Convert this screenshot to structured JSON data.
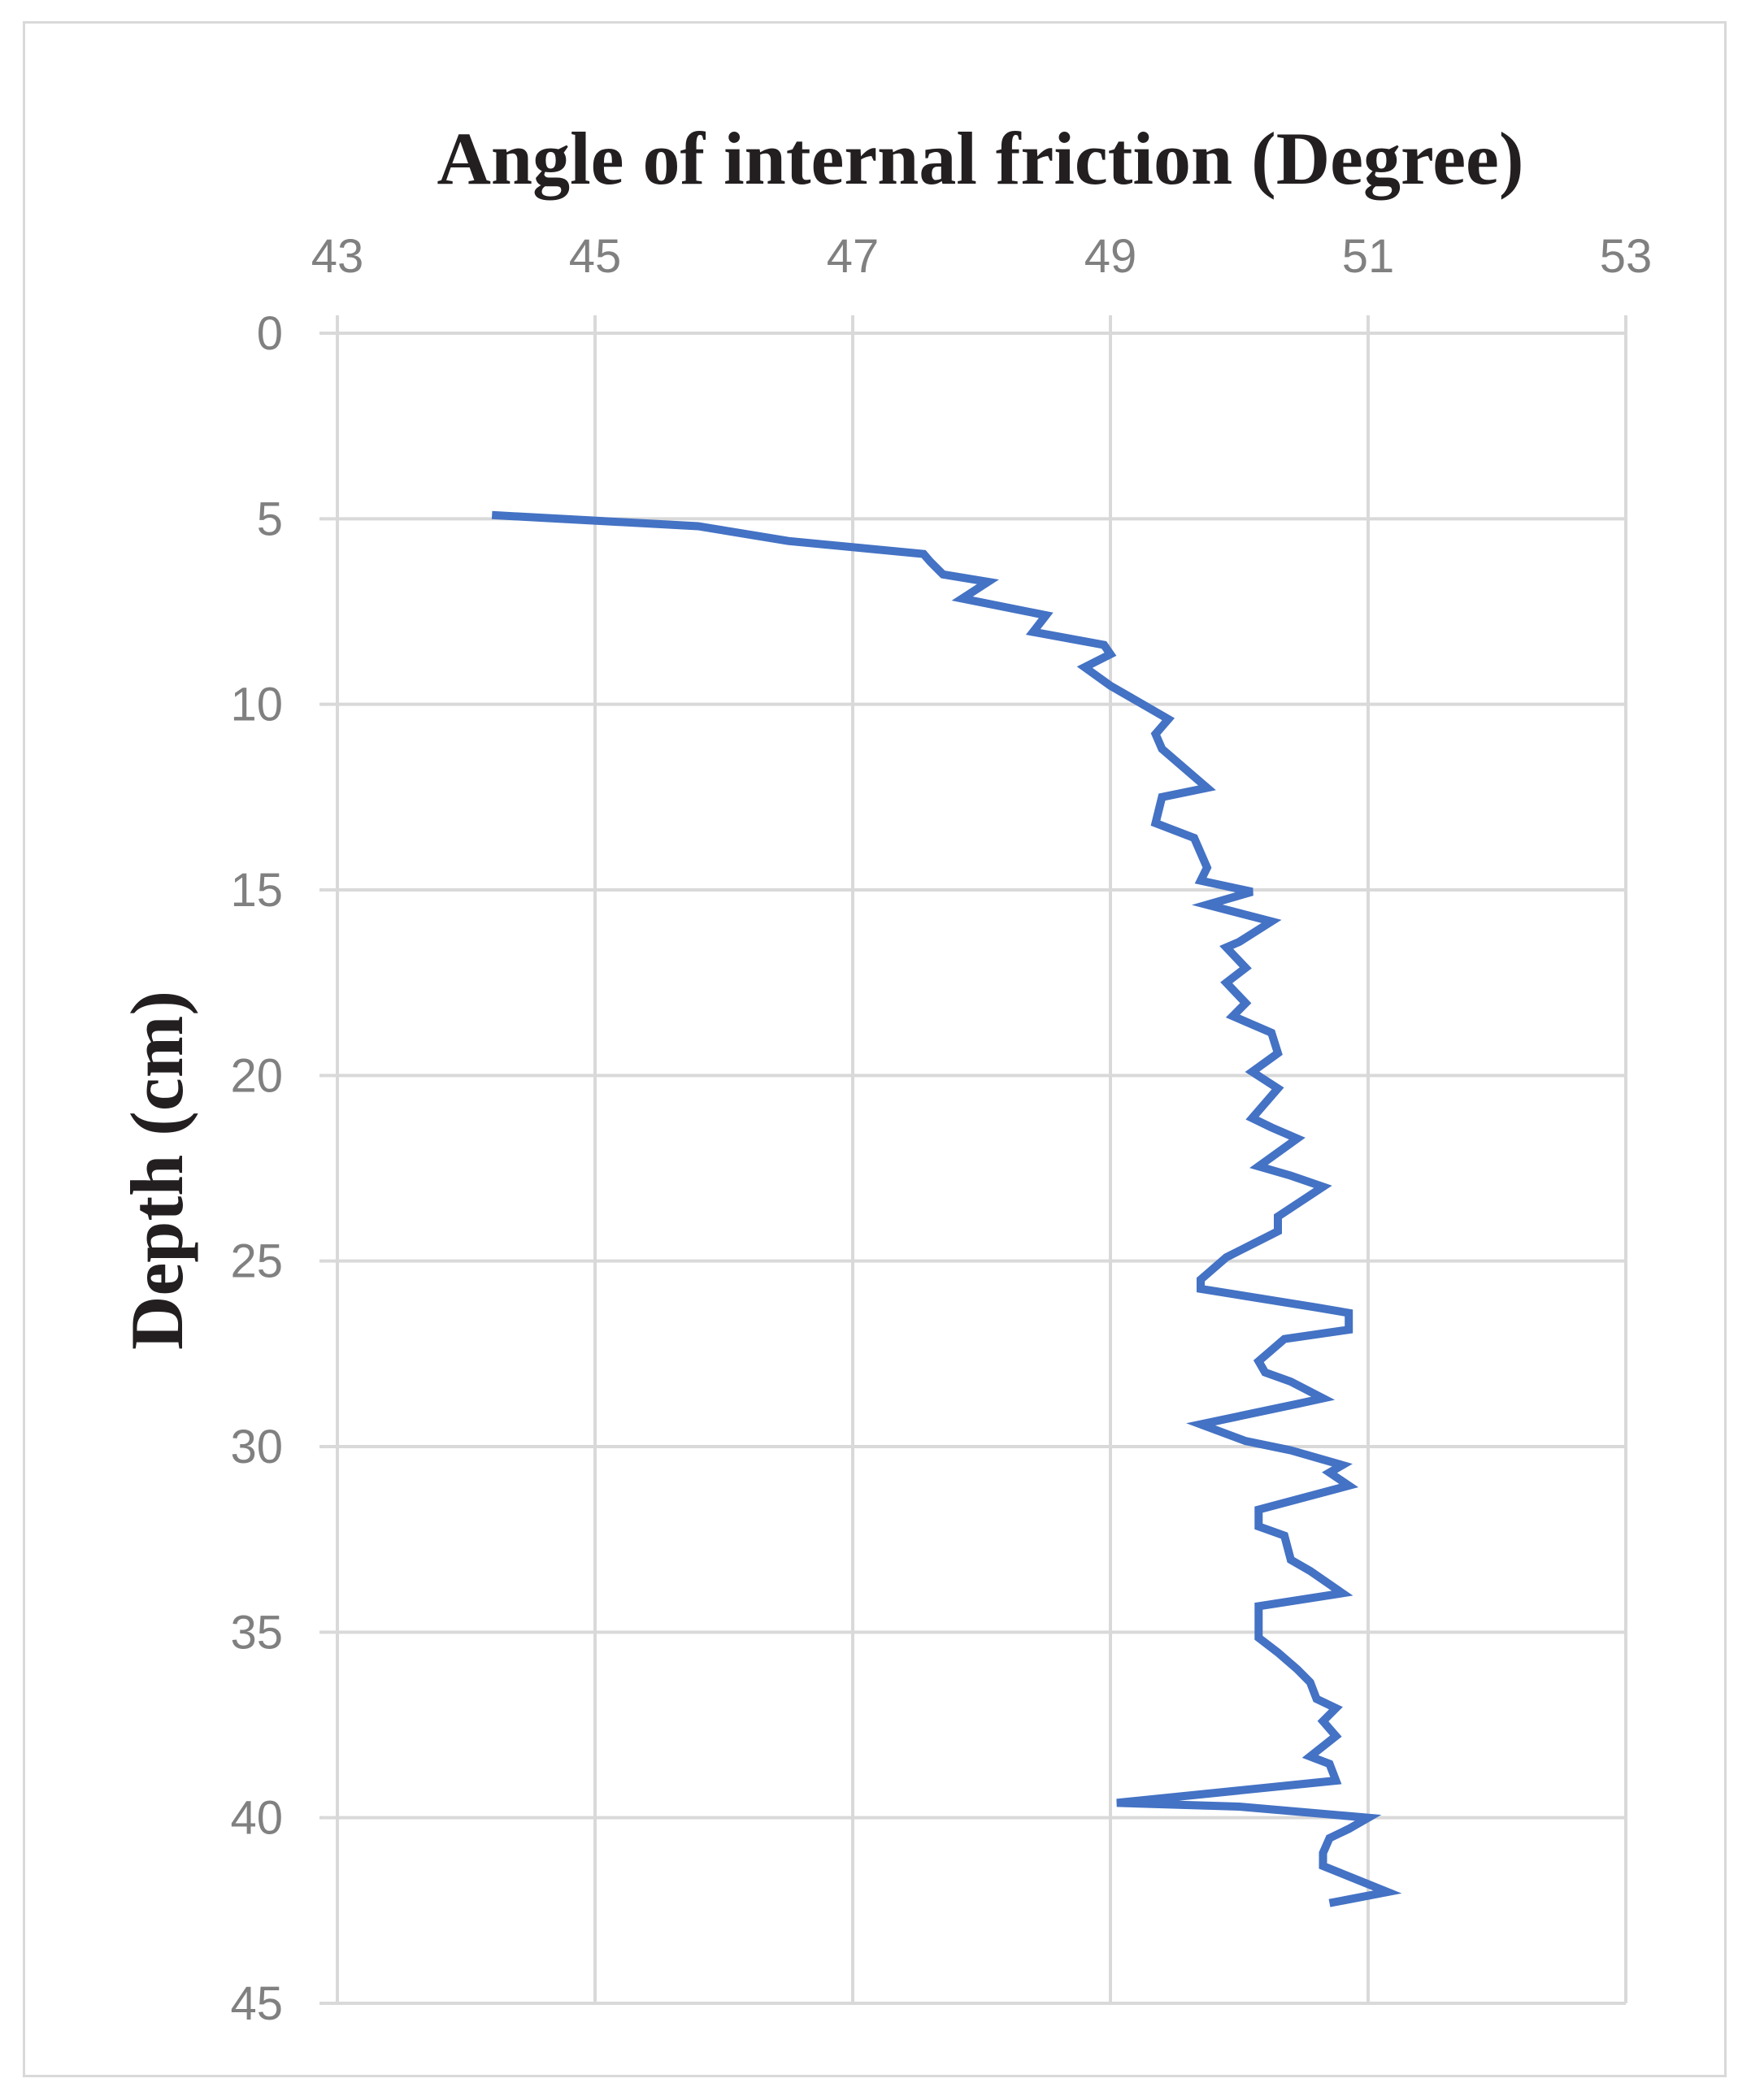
{
  "chart_data": {
    "type": "line",
    "title": "Angle of internal friction (Degree)",
    "xlabel": "Angle of internal friction (Degree)",
    "ylabel": "Depth (cm)",
    "xlim": [
      43,
      53
    ],
    "ylim": [
      0,
      45
    ],
    "x_axis_position": "top",
    "y_axis_inverted": true,
    "x_ticks": [
      43,
      45,
      47,
      49,
      51,
      53
    ],
    "y_ticks": [
      0,
      5,
      10,
      15,
      20,
      25,
      30,
      35,
      40,
      45
    ],
    "grid": true,
    "series_color": "#4472c4",
    "series": [
      {
        "x": [
          44.2,
          45.8,
          46.5,
          47.55,
          47.6,
          47.7,
          48.05,
          47.85,
          48.5,
          48.4,
          48.95,
          49.0,
          48.8,
          49.0,
          49.15,
          49.45,
          49.35,
          49.4,
          49.75,
          49.4,
          49.35,
          49.65,
          49.75,
          49.7,
          50.1,
          49.75,
          50.25,
          50.0,
          49.9,
          50.05,
          49.9,
          50.05,
          49.95,
          50.25,
          50.3,
          50.1,
          50.3,
          50.1,
          50.25,
          50.45,
          50.15,
          50.4,
          50.65,
          50.3,
          50.3,
          49.9,
          49.7,
          49.7,
          50.6,
          50.85,
          50.85,
          50.35,
          50.15,
          50.2,
          50.4,
          50.65,
          50.45,
          49.7,
          50.05,
          50.4,
          50.8,
          50.7,
          50.85,
          50.15,
          50.15,
          50.35,
          50.4,
          50.55,
          50.8,
          50.15,
          50.15,
          50.3,
          50.45,
          50.55,
          50.6,
          50.75,
          50.65,
          50.75,
          50.55,
          50.7,
          50.75,
          49.05,
          50.0,
          51.0,
          50.85,
          50.7,
          50.65,
          50.65,
          51.15,
          50.7
        ],
        "y": [
          4.9,
          5.2,
          5.6,
          5.95,
          6.15,
          6.5,
          6.7,
          7.15,
          7.6,
          8.05,
          8.4,
          8.65,
          9.0,
          9.5,
          9.8,
          10.4,
          10.8,
          11.2,
          12.25,
          12.5,
          13.2,
          13.6,
          14.4,
          14.75,
          15.05,
          15.4,
          15.85,
          16.4,
          16.55,
          17.1,
          17.5,
          18.05,
          18.4,
          18.85,
          19.4,
          19.9,
          20.35,
          21.15,
          21.4,
          21.7,
          22.45,
          22.7,
          23.0,
          23.8,
          24.2,
          24.9,
          25.5,
          25.75,
          26.25,
          26.4,
          26.85,
          27.1,
          27.7,
          28.0,
          28.25,
          28.7,
          28.85,
          29.4,
          29.85,
          30.1,
          30.5,
          30.7,
          31.05,
          31.7,
          32.15,
          32.4,
          33.05,
          33.35,
          33.95,
          34.3,
          35.15,
          35.55,
          36.0,
          36.35,
          36.8,
          37.05,
          37.4,
          37.8,
          38.35,
          38.55,
          39.0,
          39.6,
          39.7,
          40.0,
          40.3,
          40.55,
          40.95,
          41.3,
          42.0,
          42.3
        ]
      }
    ]
  }
}
